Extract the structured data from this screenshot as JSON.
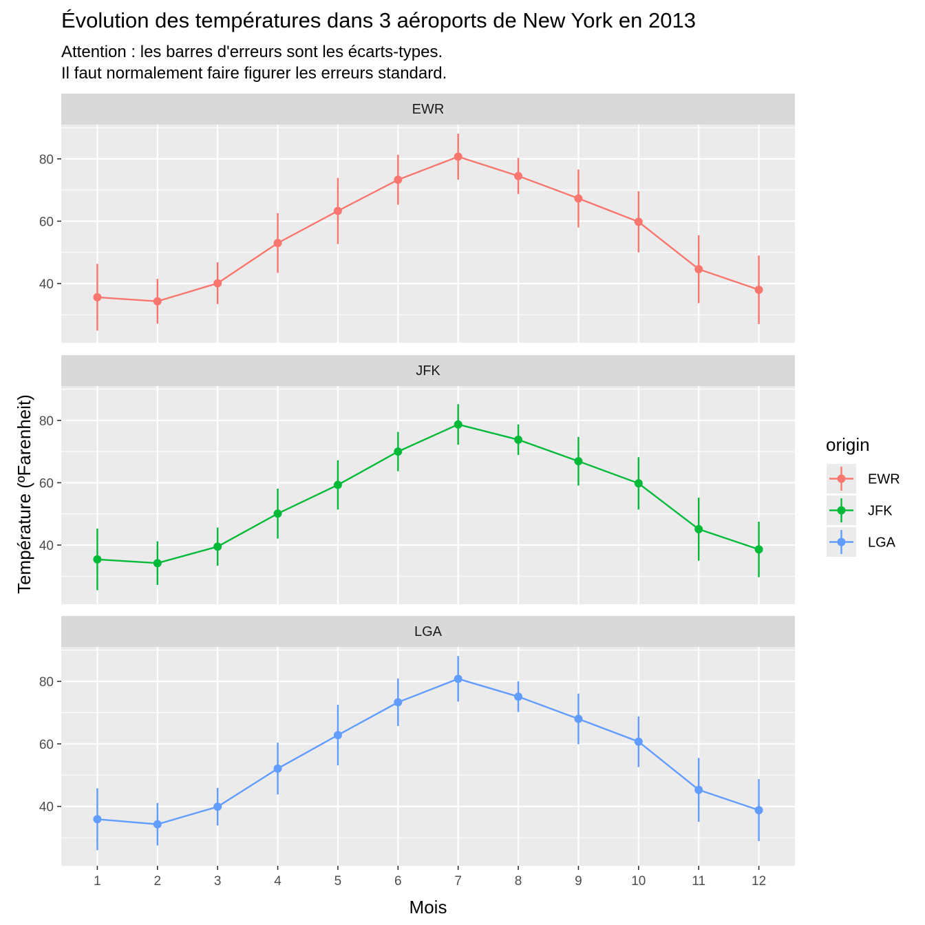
{
  "chart_data": {
    "type": "line",
    "title": "Évolution des températures dans 3 aéroports de New York en 2013",
    "subtitle_lines": [
      "Attention : les barres d'erreurs sont les écarts-types.",
      "Il faut normalement faire figurer les erreurs standard."
    ],
    "xlabel": "Mois",
    "ylabel": "Température (ºFarenheit)",
    "x": [
      1,
      2,
      3,
      4,
      5,
      6,
      7,
      8,
      9,
      10,
      11,
      12
    ],
    "x_tick_labels": [
      "1",
      "2",
      "3",
      "4",
      "5",
      "6",
      "7",
      "8",
      "9",
      "10",
      "11",
      "12"
    ],
    "xlim": [
      0.4,
      12.6
    ],
    "ylim": [
      21,
      91
    ],
    "y_ticks": [
      40,
      60,
      80
    ],
    "y_tick_labels": [
      "40",
      "60",
      "80"
    ],
    "grid": true,
    "facets": [
      "EWR",
      "JFK",
      "LGA"
    ],
    "legend": {
      "title": "origin",
      "position": "right"
    },
    "series": [
      {
        "name": "EWR",
        "color": "#F8766D",
        "values": [
          35.6,
          34.3,
          40.1,
          53.0,
          63.3,
          73.3,
          80.7,
          74.5,
          67.3,
          59.8,
          44.6,
          38.0
        ],
        "sd": [
          10.7,
          7.2,
          6.7,
          9.6,
          10.6,
          8.0,
          7.4,
          5.8,
          9.3,
          9.8,
          10.9,
          11.0
        ]
      },
      {
        "name": "JFK",
        "color": "#00BA38",
        "values": [
          35.4,
          34.2,
          39.5,
          50.1,
          59.3,
          70.0,
          78.7,
          73.8,
          66.9,
          59.8,
          45.1,
          38.6
        ],
        "sd": [
          9.9,
          7.0,
          6.1,
          8.0,
          7.9,
          6.3,
          6.5,
          4.9,
          7.8,
          8.4,
          10.1,
          8.9
        ]
      },
      {
        "name": "LGA",
        "color": "#619CFF",
        "values": [
          35.9,
          34.3,
          39.9,
          52.1,
          62.8,
          73.3,
          80.8,
          75.1,
          68.0,
          60.7,
          45.3,
          38.8
        ],
        "sd": [
          9.9,
          6.8,
          6.0,
          8.3,
          9.7,
          7.6,
          7.3,
          4.9,
          8.1,
          8.1,
          10.2,
          9.9
        ]
      }
    ]
  }
}
